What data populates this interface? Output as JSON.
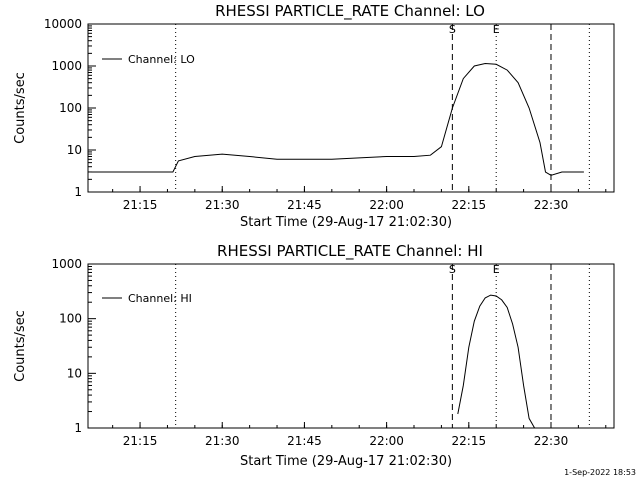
{
  "footer_timestamp": "1-Sep-2022 18:53",
  "chart_data": [
    {
      "type": "line",
      "title": "RHESSI PARTICLE_RATE Channel: LO",
      "xlabel": "Start Time (29-Aug-17 21:02:30)",
      "ylabel": "Counts/sec",
      "yscale": "log",
      "ylim": [
        1,
        10000
      ],
      "xlim": [
        "21:05:30",
        "22:41:30"
      ],
      "x_ticks": [
        "21:15",
        "21:30",
        "21:45",
        "22:00",
        "22:15",
        "22:30"
      ],
      "y_ticks": [
        "1",
        "10",
        "100",
        "1000",
        "10000"
      ],
      "legend": {
        "entry": "Channel: LO",
        "placement": "top-left"
      },
      "vertical_markers": [
        {
          "time": "21:21:30",
          "style": "dotted",
          "label": ""
        },
        {
          "time": "22:12:00",
          "style": "dashed",
          "label": "S"
        },
        {
          "time": "22:20:00",
          "style": "dotted",
          "label": "E"
        },
        {
          "time": "22:30:00",
          "style": "dashed",
          "label": ""
        },
        {
          "time": "22:37:00",
          "style": "dotted",
          "label": ""
        }
      ],
      "x": [
        "21:06",
        "21:10",
        "21:14",
        "21:18",
        "21:20",
        "21:21",
        "21:22",
        "21:25",
        "21:30",
        "21:35",
        "21:40",
        "21:45",
        "21:50",
        "21:55",
        "22:00",
        "22:05",
        "22:08",
        "22:10",
        "22:12",
        "22:14",
        "22:16",
        "22:18",
        "22:20",
        "22:22",
        "22:24",
        "22:26",
        "22:28",
        "22:29",
        "22:30",
        "22:32",
        "22:34",
        "22:36"
      ],
      "series": [
        {
          "name": "Channel: LO",
          "values": [
            3,
            3,
            3,
            3,
            3,
            3,
            5.5,
            7,
            8,
            7,
            6,
            6,
            6,
            6.5,
            7,
            7,
            7.5,
            12,
            100,
            500,
            1000,
            1150,
            1100,
            800,
            400,
            100,
            15,
            3,
            2.5,
            3,
            3,
            3
          ]
        }
      ]
    },
    {
      "type": "line",
      "title": "RHESSI PARTICLE_RATE Channel: HI",
      "xlabel": "Start Time (29-Aug-17 21:02:30)",
      "ylabel": "Counts/sec",
      "yscale": "log",
      "ylim": [
        1,
        1000
      ],
      "xlim": [
        "21:05:30",
        "22:41:30"
      ],
      "x_ticks": [
        "21:15",
        "21:30",
        "21:45",
        "22:00",
        "22:15",
        "22:30"
      ],
      "y_ticks": [
        "1",
        "10",
        "100",
        "1000"
      ],
      "legend": {
        "entry": "Channel: HI",
        "placement": "top-left"
      },
      "vertical_markers": [
        {
          "time": "21:21:30",
          "style": "dotted",
          "label": ""
        },
        {
          "time": "22:12:00",
          "style": "dashed",
          "label": "S"
        },
        {
          "time": "22:20:00",
          "style": "dotted",
          "label": "E"
        },
        {
          "time": "22:30:00",
          "style": "dashed",
          "label": ""
        },
        {
          "time": "22:37:00",
          "style": "dotted",
          "label": ""
        }
      ],
      "x": [
        "22:13",
        "22:14",
        "22:15",
        "22:16",
        "22:17",
        "22:18",
        "22:19",
        "22:20",
        "22:21",
        "22:22",
        "22:23",
        "22:24",
        "22:25",
        "22:26",
        "22:27"
      ],
      "series": [
        {
          "name": "Channel: HI",
          "values": [
            1.8,
            6,
            30,
            90,
            170,
            240,
            270,
            260,
            220,
            160,
            80,
            30,
            6,
            1.5,
            1
          ]
        }
      ]
    }
  ]
}
